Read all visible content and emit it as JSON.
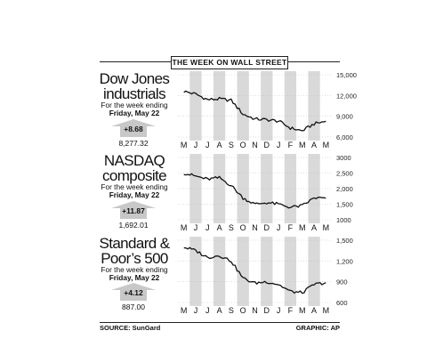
{
  "header": {
    "title": "THE WEEK ON WALL STREET"
  },
  "footer": {
    "source": "SOURCE: SunGard",
    "graphic": "GRAPHIC: AP"
  },
  "panels": [
    {
      "title_line1": "Dow Jones",
      "title_line2": "industrials",
      "sub_line1": "For the week ending",
      "sub_line2": "Friday, May 22",
      "change": "+8.68",
      "close": "8,277.32"
    },
    {
      "title_line1": "NASDAQ",
      "title_line2": "composite",
      "sub_line1": "For the week ending",
      "sub_line2": "Friday, May 22",
      "change": "+11.87",
      "close": "1,692.01"
    },
    {
      "title_line1": "Standard &",
      "title_line2": "Poor’s 500",
      "sub_line1": "For the week ending",
      "sub_line2": "Friday, May 22",
      "change": "+4.12",
      "close": "887.00"
    }
  ],
  "colors": {
    "band": "#d9d9d9",
    "arrow": "#c8c8c8",
    "line": "#111111"
  },
  "chart_data": [
    {
      "type": "line",
      "name": "Dow Jones industrials",
      "categories": [
        "M",
        "J",
        "J",
        "A",
        "S",
        "O",
        "N",
        "D",
        "J",
        "F",
        "M",
        "A",
        "M"
      ],
      "values": [
        12600,
        12200,
        11400,
        11500,
        11300,
        9300,
        8600,
        8500,
        8300,
        7300,
        6900,
        7900,
        8277
      ],
      "yticks": [
        "15,000",
        "12,000",
        "9,000",
        "6,000"
      ],
      "ytick_values": [
        15000,
        12000,
        9000,
        6000
      ],
      "ylim": [
        6000,
        15000
      ]
    },
    {
      "type": "line",
      "name": "NASDAQ composite",
      "categories": [
        "M",
        "J",
        "J",
        "A",
        "S",
        "O",
        "N",
        "D",
        "J",
        "F",
        "M",
        "A",
        "M"
      ],
      "values": [
        2500,
        2400,
        2300,
        2350,
        2100,
        1700,
        1500,
        1550,
        1500,
        1400,
        1450,
        1700,
        1692
      ],
      "yticks": [
        "3000",
        "2,500",
        "2,000",
        "1,500",
        "1000"
      ],
      "ytick_values": [
        3000,
        2500,
        2000,
        1500,
        1000
      ],
      "ylim": [
        1000,
        3000
      ]
    },
    {
      "type": "line",
      "name": "Standard & Poor’s 500",
      "categories": [
        "M",
        "J",
        "J",
        "A",
        "S",
        "O",
        "N",
        "D",
        "J",
        "F",
        "M",
        "A",
        "M"
      ],
      "values": [
        1400,
        1350,
        1250,
        1280,
        1200,
        950,
        880,
        900,
        860,
        760,
        740,
        860,
        887
      ],
      "yticks": [
        "1,500",
        "1,200",
        "900",
        "600"
      ],
      "ytick_values": [
        1500,
        1200,
        900,
        600
      ],
      "ylim": [
        600,
        1500
      ]
    }
  ]
}
